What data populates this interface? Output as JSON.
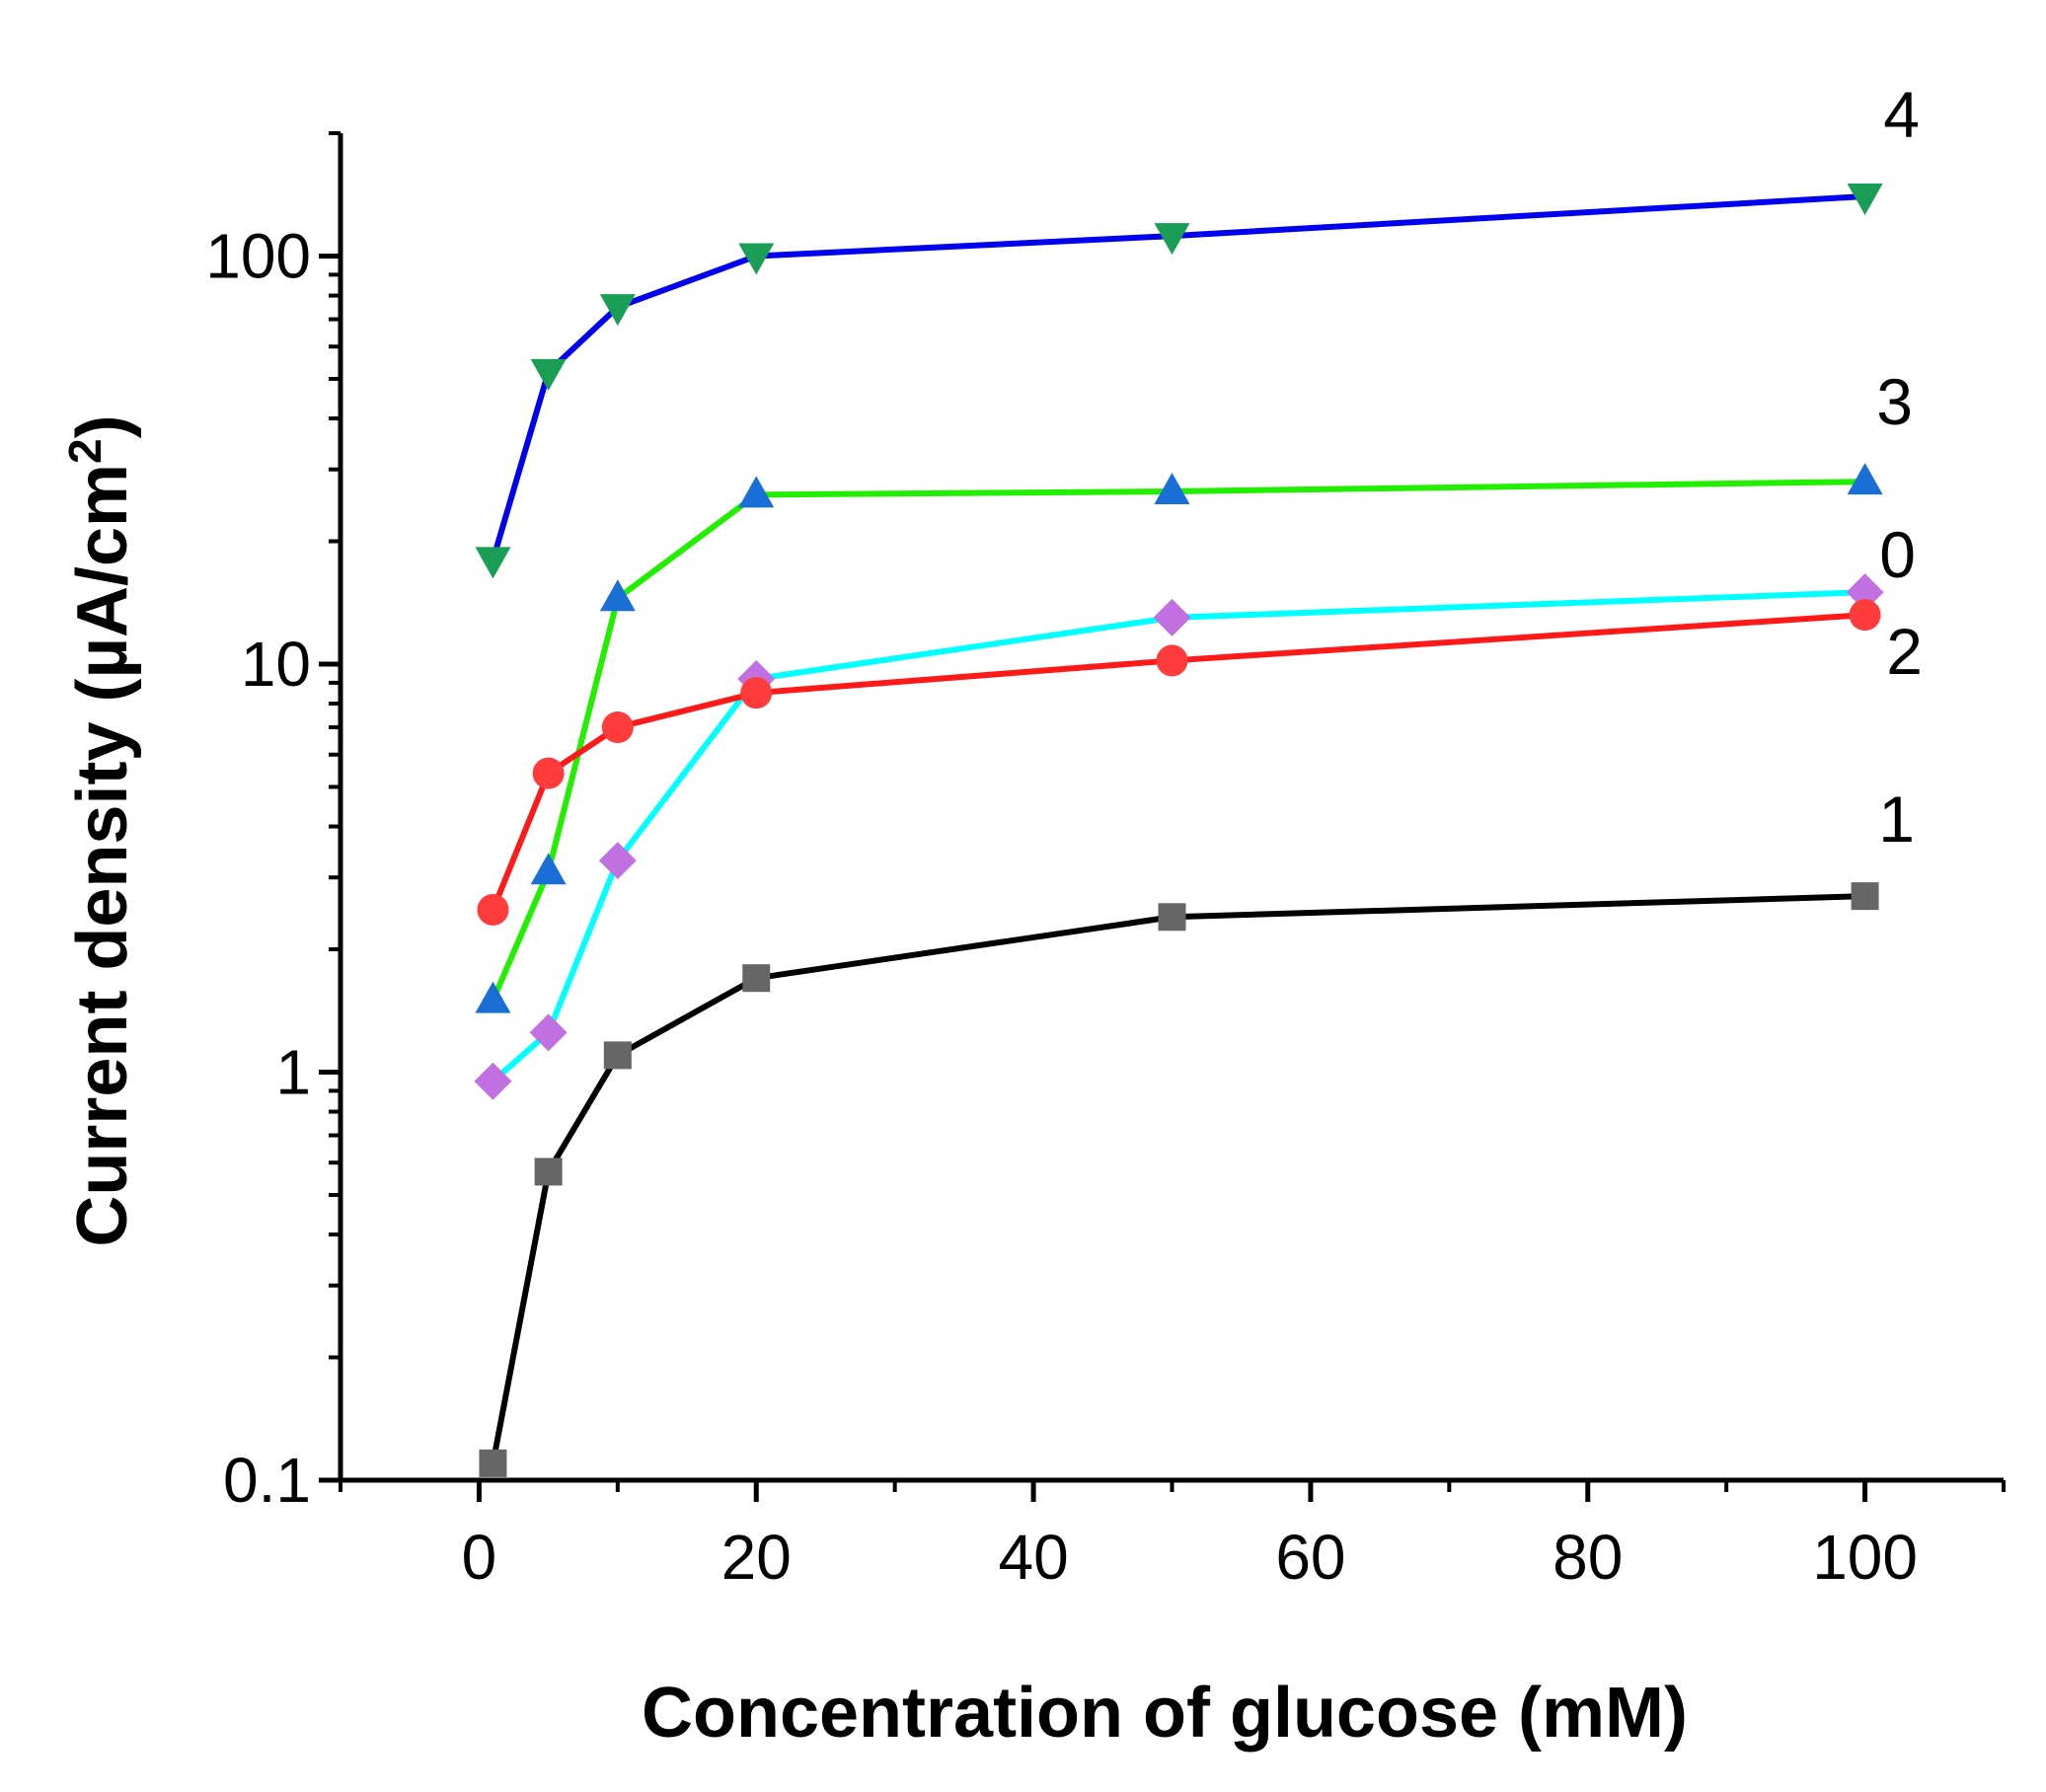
{
  "chart_data": {
    "type": "line",
    "title": "",
    "xlabel": "Concentration of glucose (mM)",
    "ylabel_main": "Current density (µA/cm",
    "ylabel_sup": "2",
    "ylabel_close": ")",
    "ylabel": "Current density (µA/cm2)",
    "xscale": "linear",
    "yscale": "log",
    "xlim": [
      -10,
      110
    ],
    "ylim": [
      0.1,
      200
    ],
    "xticks": [
      0,
      20,
      40,
      60,
      80,
      100
    ],
    "xtick_labels": [
      "0",
      "20",
      "40",
      "60",
      "80",
      "100"
    ],
    "yticks": [
      0.1,
      1,
      10,
      100
    ],
    "ytick_labels": [
      "0.1",
      "1",
      "10",
      "100"
    ],
    "grid": false,
    "x": [
      1,
      5,
      10,
      20,
      50,
      100
    ],
    "series": [
      {
        "name": "4",
        "line_color": "#0000ee",
        "marker": "triangle-down",
        "marker_color": "#1a9e55",
        "values": [
          18,
          52,
          75,
          100,
          112,
          140
        ]
      },
      {
        "name": "3",
        "line_color": "#22ee00",
        "marker": "triangle-up",
        "marker_color": "#1a6fd6",
        "values": [
          1.5,
          3.1,
          14.5,
          26,
          26.5,
          28
        ]
      },
      {
        "name": "0",
        "line_color": "#00ffff",
        "marker": "diamond",
        "marker_color": "#c070e0",
        "values": [
          0.95,
          1.25,
          3.3,
          9.2,
          13,
          15
        ]
      },
      {
        "name": "2",
        "line_color": "#ff1a1a",
        "marker": "circle",
        "marker_color": "#ff3b3b",
        "values": [
          2.5,
          5.4,
          7,
          8.5,
          10.2,
          13.2
        ]
      },
      {
        "name": "1",
        "line_color": "#000000",
        "marker": "square",
        "marker_color": "#666666",
        "values": [
          0.11,
          0.57,
          1.1,
          1.7,
          2.4,
          2.7
        ]
      }
    ]
  }
}
